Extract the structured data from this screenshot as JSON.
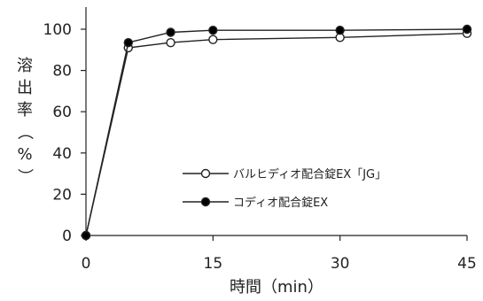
{
  "chart_data": {
    "type": "line",
    "title": "",
    "xlabel": "時間（min）",
    "ylabel": "溶出率（%）",
    "xlim": [
      0,
      45
    ],
    "ylim": [
      0,
      100
    ],
    "xticks": [
      0,
      15,
      30,
      45
    ],
    "yticks": [
      0,
      20,
      40,
      60,
      80,
      100
    ],
    "grid": false,
    "legend_position": "right-center",
    "series": [
      {
        "name": "バルヒディオ配合錠EX「JG」",
        "marker": "open-circle",
        "x": [
          0,
          5,
          10,
          15,
          30,
          45
        ],
        "y": [
          0,
          91,
          93.5,
          95,
          96,
          98
        ]
      },
      {
        "name": "コディオ配合錠EX",
        "marker": "filled-circle",
        "x": [
          0,
          5,
          10,
          15,
          30,
          45
        ],
        "y": [
          0,
          93.5,
          98.5,
          99.5,
          99.5,
          100
        ]
      }
    ],
    "colors": {
      "line": "#222222",
      "open_fill": "#ffffff",
      "filled_fill": "#000000"
    }
  }
}
